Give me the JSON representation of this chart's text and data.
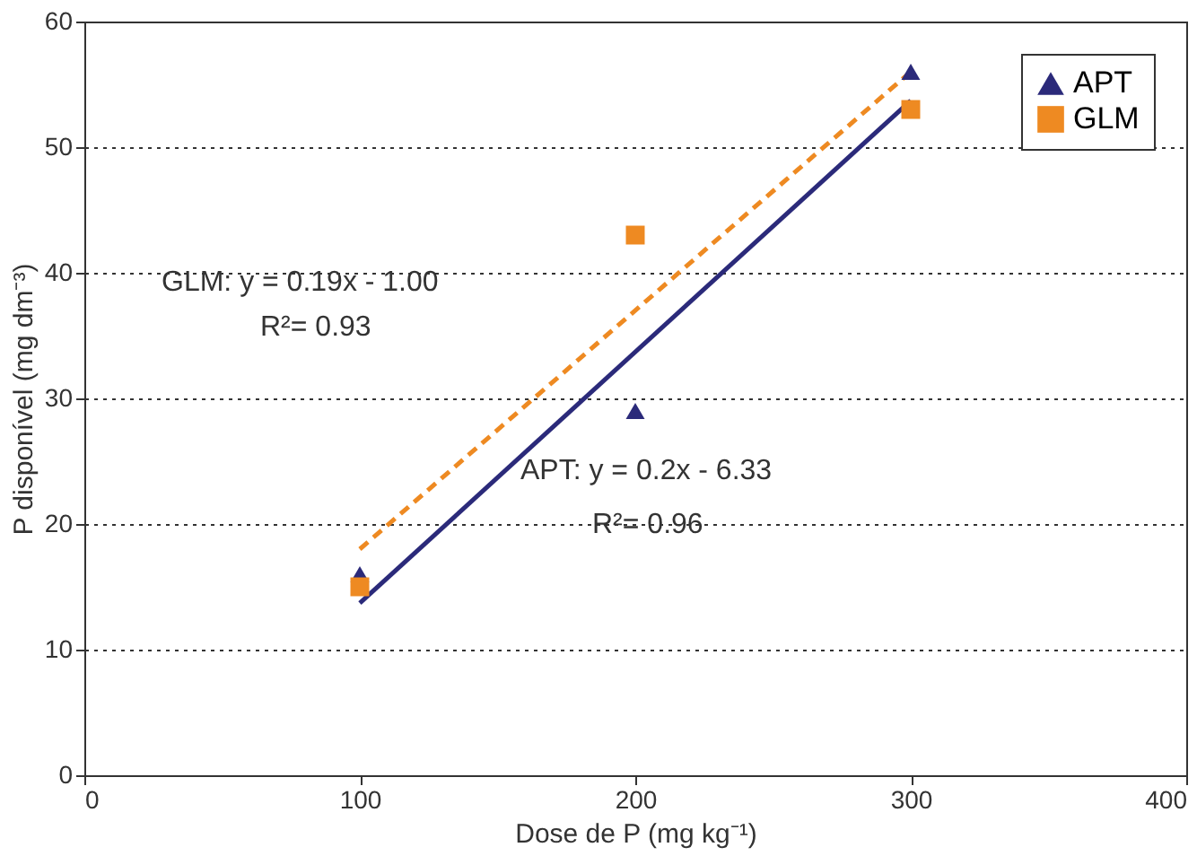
{
  "chart_data": {
    "type": "scatter",
    "xlabel": "Dose de P (mg kg⁻¹)",
    "ylabel": "P disponível (mg dm⁻³)",
    "series": [
      {
        "name": "APT",
        "color": "#2b2a7a",
        "marker": "triangle",
        "x": [
          100,
          200,
          300
        ],
        "values": [
          16,
          29,
          56
        ]
      },
      {
        "name": "GLM",
        "color": "#ee8a22",
        "marker": "square",
        "x": [
          100,
          200,
          300
        ],
        "values": [
          15,
          43,
          53
        ]
      },
      {
        "color": "#2b2a7a",
        "type": "line",
        "line_style": "solid",
        "x": [
          100,
          300
        ],
        "values": [
          13.7,
          53.7
        ]
      },
      {
        "color": "#ee8a22",
        "type": "line",
        "line_style": "dashed",
        "x": [
          100,
          300
        ],
        "values": [
          18,
          56
        ]
      }
    ],
    "annotations": [
      "GLM:  y = 0.19x - 1.00",
      "R²= 0.93",
      "APT: y = 0.2x - 6.33",
      "R²= 0.96"
    ],
    "xlim": [
      0,
      400
    ],
    "xticks": [
      0,
      100,
      200,
      300,
      400
    ],
    "ylim": [
      0,
      60
    ],
    "yticks": [
      0,
      10,
      20,
      30,
      40,
      50,
      60
    ],
    "grid": "y",
    "legend": "top right"
  }
}
